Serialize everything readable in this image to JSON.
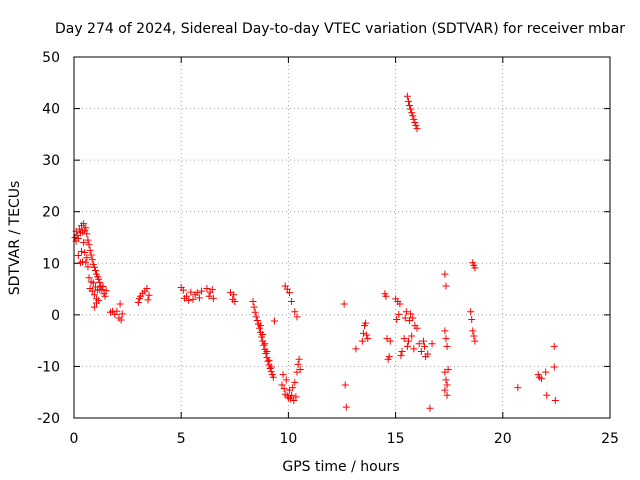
{
  "chart_data": {
    "type": "scatter",
    "title": "Day 274 of 2024, Sidereal Day-to-day VTEC variation (SDTVAR) for receiver mbar",
    "xlabel": "GPS time / hours",
    "ylabel": "SDTVAR / TECUs",
    "xlim": [
      0,
      25
    ],
    "ylim": [
      -20,
      50
    ],
    "xticks": [
      0,
      5,
      10,
      15,
      20,
      25
    ],
    "xtick_labels": [
      "0",
      "5",
      "10",
      "15",
      "20",
      "25"
    ],
    "yticks": [
      -20,
      -10,
      0,
      10,
      20,
      30,
      40,
      50
    ],
    "ytick_labels": [
      "-20",
      "-10",
      "0",
      "10",
      "20",
      "30",
      "40",
      "50"
    ],
    "grid": true,
    "marker": "+",
    "color": "#ff0000",
    "series": [
      {
        "name": "SDTVAR",
        "points": [
          [
            0.05,
            15.0
          ],
          [
            0.1,
            14.3
          ],
          [
            0.1,
            16.2
          ],
          [
            0.15,
            15.4
          ],
          [
            0.2,
            11.5
          ],
          [
            0.2,
            14.8
          ],
          [
            0.25,
            16.6
          ],
          [
            0.3,
            10.1
          ],
          [
            0.3,
            15.9
          ],
          [
            0.35,
            12.3
          ],
          [
            0.35,
            17.3
          ],
          [
            0.4,
            16.1
          ],
          [
            0.4,
            10.3
          ],
          [
            0.45,
            17.7
          ],
          [
            0.45,
            14.0
          ],
          [
            0.5,
            16.4
          ],
          [
            0.5,
            12.1
          ],
          [
            0.55,
            16.9
          ],
          [
            0.55,
            10.2
          ],
          [
            0.6,
            15.7
          ],
          [
            0.6,
            11.1
          ],
          [
            0.65,
            14.5
          ],
          [
            0.65,
            9.3
          ],
          [
            0.7,
            13.6
          ],
          [
            0.7,
            7.2
          ],
          [
            0.75,
            12.5
          ],
          [
            0.75,
            5.1
          ],
          [
            0.8,
            11.6
          ],
          [
            0.8,
            6.4
          ],
          [
            0.85,
            10.7
          ],
          [
            0.85,
            4.6
          ],
          [
            0.9,
            9.8
          ],
          [
            0.9,
            6.2
          ],
          [
            0.95,
            9.2
          ],
          [
            0.95,
            3.9
          ],
          [
            1.0,
            8.6
          ],
          [
            1.0,
            5.4
          ],
          [
            1.05,
            7.9
          ],
          [
            1.05,
            3.1
          ],
          [
            1.1,
            7.4
          ],
          [
            1.1,
            4.8
          ],
          [
            1.15,
            6.9
          ],
          [
            1.15,
            2.8
          ],
          [
            1.2,
            6.3
          ],
          [
            1.2,
            4.9
          ],
          [
            1.25,
            5.6
          ],
          [
            1.3,
            4.9
          ],
          [
            1.35,
            5.5
          ],
          [
            1.4,
            4.1
          ],
          [
            1.45,
            3.6
          ],
          [
            1.5,
            4.7
          ],
          [
            0.95,
            1.5
          ],
          [
            1.05,
            2.3
          ],
          [
            1.7,
            0.5
          ],
          [
            1.8,
            0.7
          ],
          [
            1.9,
            0.1
          ],
          [
            2.0,
            0.7
          ],
          [
            2.1,
            -0.6
          ],
          [
            2.15,
            2.1
          ],
          [
            2.2,
            -1.0
          ],
          [
            2.25,
            0.2
          ],
          [
            3.0,
            2.4
          ],
          [
            3.05,
            3.2
          ],
          [
            3.1,
            3.6
          ],
          [
            3.2,
            4.2
          ],
          [
            3.3,
            4.6
          ],
          [
            3.4,
            5.1
          ],
          [
            3.45,
            2.9
          ],
          [
            3.5,
            3.8
          ],
          [
            5.0,
            5.3
          ],
          [
            5.1,
            4.8
          ],
          [
            5.15,
            3.2
          ],
          [
            5.25,
            3.6
          ],
          [
            5.35,
            2.8
          ],
          [
            5.45,
            4.4
          ],
          [
            5.55,
            3.0
          ],
          [
            5.65,
            3.9
          ],
          [
            5.75,
            4.3
          ],
          [
            5.85,
            3.3
          ],
          [
            5.95,
            4.6
          ],
          [
            6.2,
            5.1
          ],
          [
            6.3,
            3.6
          ],
          [
            6.35,
            4.4
          ],
          [
            6.45,
            4.9
          ],
          [
            6.5,
            3.2
          ],
          [
            7.3,
            4.3
          ],
          [
            7.4,
            3.0
          ],
          [
            7.45,
            3.9
          ],
          [
            7.5,
            2.6
          ],
          [
            8.35,
            2.6
          ],
          [
            8.4,
            1.5
          ],
          [
            8.45,
            0.5
          ],
          [
            8.5,
            -0.4
          ],
          [
            8.55,
            -1.1
          ],
          [
            8.6,
            -1.8
          ],
          [
            8.65,
            -2.6
          ],
          [
            8.7,
            -3.4
          ],
          [
            8.75,
            -4.3
          ],
          [
            8.8,
            -5.1
          ],
          [
            8.85,
            -5.9
          ],
          [
            8.9,
            -6.7
          ],
          [
            8.95,
            -7.5
          ],
          [
            9.0,
            -8.3
          ],
          [
            9.05,
            -9.0
          ],
          [
            9.1,
            -9.7
          ],
          [
            9.15,
            -10.4
          ],
          [
            9.2,
            -11.0
          ],
          [
            9.25,
            -11.6
          ],
          [
            9.3,
            -12.1
          ],
          [
            8.7,
            -2.1
          ],
          [
            8.8,
            -3.8
          ],
          [
            8.9,
            -5.6
          ],
          [
            9.0,
            -7.1
          ],
          [
            9.1,
            -8.8
          ],
          [
            9.2,
            -10.1
          ],
          [
            9.35,
            -1.2
          ],
          [
            9.7,
            -13.6
          ],
          [
            9.75,
            -11.6
          ],
          [
            9.8,
            -14.3
          ],
          [
            9.85,
            -15.4
          ],
          [
            9.9,
            -12.6
          ],
          [
            9.95,
            -15.7
          ],
          [
            10.0,
            -16.1
          ],
          [
            10.05,
            -14.6
          ],
          [
            10.1,
            -16.3
          ],
          [
            10.15,
            -15.6
          ],
          [
            10.2,
            -14.1
          ],
          [
            10.25,
            -16.6
          ],
          [
            10.3,
            -13.1
          ],
          [
            10.35,
            -15.9
          ],
          [
            10.4,
            -11.1
          ],
          [
            10.45,
            -9.6
          ],
          [
            10.5,
            -8.6
          ],
          [
            10.55,
            -10.6
          ],
          [
            9.85,
            5.6
          ],
          [
            9.95,
            5.0
          ],
          [
            10.05,
            4.3
          ],
          [
            10.15,
            2.6
          ],
          [
            10.3,
            0.6
          ],
          [
            10.4,
            -0.4
          ],
          [
            12.6,
            2.1
          ],
          [
            12.65,
            -13.6
          ],
          [
            12.7,
            -17.9
          ],
          [
            13.15,
            -6.6
          ],
          [
            13.45,
            -5.1
          ],
          [
            13.5,
            -3.6
          ],
          [
            13.55,
            -2.1
          ],
          [
            13.6,
            -1.6
          ],
          [
            13.65,
            -3.9
          ],
          [
            13.7,
            -4.6
          ],
          [
            14.5,
            4.1
          ],
          [
            14.55,
            3.6
          ],
          [
            14.6,
            -4.6
          ],
          [
            14.65,
            -8.6
          ],
          [
            14.7,
            -8.1
          ],
          [
            14.75,
            -5.1
          ],
          [
            15.0,
            3.1
          ],
          [
            15.05,
            -0.9
          ],
          [
            15.1,
            2.6
          ],
          [
            15.15,
            0.1
          ],
          [
            15.2,
            2.1
          ],
          [
            15.25,
            -7.9
          ],
          [
            15.3,
            -7.1
          ],
          [
            15.4,
            -4.6
          ],
          [
            15.45,
            -0.6
          ],
          [
            15.5,
            0.6
          ],
          [
            15.55,
            -6.1
          ],
          [
            15.6,
            -5.1
          ],
          [
            15.65,
            -1.1
          ],
          [
            15.7,
            0.2
          ],
          [
            15.75,
            -4.1
          ],
          [
            15.8,
            -0.6
          ],
          [
            15.85,
            -6.6
          ],
          [
            15.9,
            -2.1
          ],
          [
            16.0,
            -2.6
          ],
          [
            16.1,
            -5.6
          ],
          [
            16.2,
            -7.1
          ],
          [
            16.3,
            -5.1
          ],
          [
            16.35,
            -6.1
          ],
          [
            16.4,
            -8.1
          ],
          [
            16.5,
            -7.6
          ],
          [
            16.7,
            -5.6
          ],
          [
            16.6,
            -18.1
          ],
          [
            17.3,
            7.9
          ],
          [
            17.35,
            5.6
          ],
          [
            17.3,
            -3.1
          ],
          [
            17.35,
            -4.6
          ],
          [
            17.4,
            -6.1
          ],
          [
            17.3,
            -11.1
          ],
          [
            17.35,
            -12.6
          ],
          [
            17.4,
            -13.6
          ],
          [
            17.3,
            -14.6
          ],
          [
            17.4,
            -15.6
          ],
          [
            17.45,
            -10.6
          ],
          [
            18.5,
            0.6
          ],
          [
            18.55,
            -0.9
          ],
          [
            18.6,
            -3.1
          ],
          [
            18.65,
            -4.1
          ],
          [
            18.7,
            -5.1
          ],
          [
            18.6,
            10.1
          ],
          [
            18.65,
            9.6
          ],
          [
            18.7,
            9.1
          ],
          [
            15.55,
            42.4
          ],
          [
            15.6,
            41.4
          ],
          [
            15.65,
            40.6
          ],
          [
            15.7,
            39.9
          ],
          [
            15.75,
            39.2
          ],
          [
            15.8,
            38.6
          ],
          [
            15.85,
            37.9
          ],
          [
            15.9,
            37.3
          ],
          [
            15.95,
            36.7
          ],
          [
            16.0,
            36.1
          ],
          [
            20.7,
            -14.1
          ],
          [
            21.65,
            -11.6
          ],
          [
            21.7,
            -12.1
          ],
          [
            21.8,
            -12.4
          ],
          [
            22.0,
            -11.1
          ],
          [
            22.05,
            -15.6
          ],
          [
            22.4,
            -6.1
          ],
          [
            22.4,
            -10.1
          ],
          [
            22.45,
            -16.6
          ]
        ]
      }
    ]
  }
}
